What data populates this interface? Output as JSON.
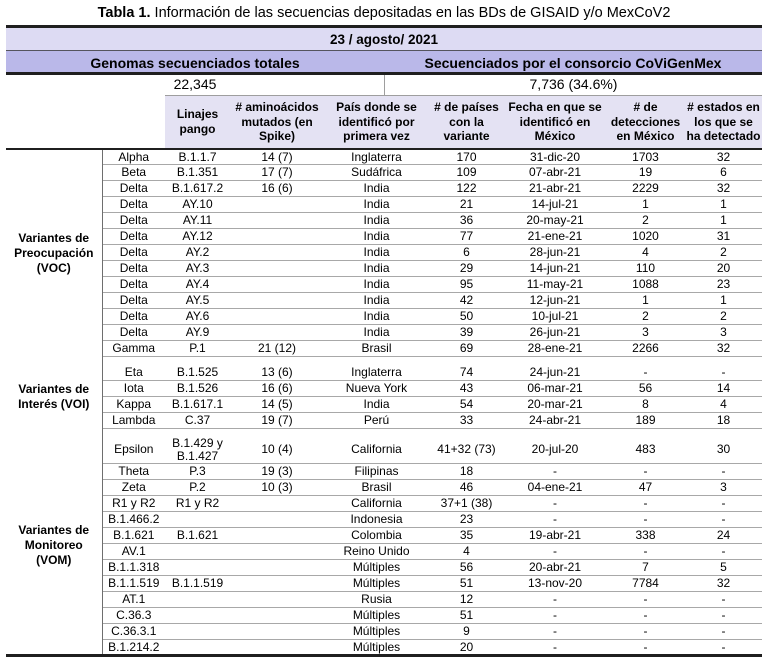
{
  "title": {
    "label": "Tabla 1.",
    "text": " Información de las secuencias depositadas en las BDs de GISAID y/o MexCoV2"
  },
  "summary": {
    "date": "23 / agosto/ 2021",
    "left_header": "Genomas secuenciados totales",
    "right_header": "Secuenciados por el consorcio CoViGenMex",
    "left_value": "22,345",
    "right_value": "7,736 (34.6%)"
  },
  "colors": {
    "date_band": "#dddbf3",
    "header_band": "#bab8e9",
    "column_band": "#e4e2f3",
    "border_dark": "#1f1f1f",
    "border_gray": "#9e9e9e"
  },
  "table": {
    "columns": [
      "Linajes pango",
      "# aminoácidos mutados (en Spike)",
      "País donde se identificó por primera vez",
      "# de países con la variante",
      "Fecha en que se identificó en México",
      "# de detecciones en México",
      "# estados en los que se ha detectado"
    ],
    "row_keys": [
      "name",
      "linaje",
      "amino",
      "pais",
      "paises",
      "fecha",
      "detecciones",
      "estados"
    ],
    "groups": [
      {
        "label": "Variantes de\nPreocupación\n(VOC)",
        "rows": [
          {
            "name": "Alpha",
            "linaje": "B.1.1.7",
            "amino": "14 (7)",
            "pais": "Inglaterra",
            "paises": "170",
            "fecha": "31-dic-20",
            "detecciones": "1703",
            "estados": "32"
          },
          {
            "name": "Beta",
            "linaje": "B.1.351",
            "amino": "17 (7)",
            "pais": "Sudáfrica",
            "paises": "109",
            "fecha": "07-abr-21",
            "detecciones": "19",
            "estados": "6"
          },
          {
            "name": "Delta",
            "linaje": "B.1.617.2",
            "amino": "16 (6)",
            "pais": "India",
            "paises": "122",
            "fecha": "21-abr-21",
            "detecciones": "2229",
            "estados": "32"
          },
          {
            "name": "Delta",
            "linaje": "AY.10",
            "amino": "",
            "pais": "India",
            "paises": "21",
            "fecha": "14-jul-21",
            "detecciones": "1",
            "estados": "1"
          },
          {
            "name": "Delta",
            "linaje": "AY.11",
            "amino": "",
            "pais": "India",
            "paises": "36",
            "fecha": "20-may-21",
            "detecciones": "2",
            "estados": "1"
          },
          {
            "name": "Delta",
            "linaje": "AY.12",
            "amino": "",
            "pais": "India",
            "paises": "77",
            "fecha": "21-ene-21",
            "detecciones": "1020",
            "estados": "31"
          },
          {
            "name": "Delta",
            "linaje": "AY.2",
            "amino": "",
            "pais": "India",
            "paises": "6",
            "fecha": "28-jun-21",
            "detecciones": "4",
            "estados": "2"
          },
          {
            "name": "Delta",
            "linaje": "AY.3",
            "amino": "",
            "pais": "India",
            "paises": "29",
            "fecha": "14-jun-21",
            "detecciones": "110",
            "estados": "20"
          },
          {
            "name": "Delta",
            "linaje": "AY.4",
            "amino": "",
            "pais": "India",
            "paises": "95",
            "fecha": "11-may-21",
            "detecciones": "1088",
            "estados": "23"
          },
          {
            "name": "Delta",
            "linaje": "AY.5",
            "amino": "",
            "pais": "India",
            "paises": "42",
            "fecha": "12-jun-21",
            "detecciones": "1",
            "estados": "1"
          },
          {
            "name": "Delta",
            "linaje": "AY.6",
            "amino": "",
            "pais": "India",
            "paises": "50",
            "fecha": "10-jul-21",
            "detecciones": "2",
            "estados": "2"
          },
          {
            "name": "Delta",
            "linaje": "AY.9",
            "amino": "",
            "pais": "India",
            "paises": "39",
            "fecha": "26-jun-21",
            "detecciones": "3",
            "estados": "3"
          },
          {
            "name": "Gamma",
            "linaje": "P.1",
            "amino": "21 (12)",
            "pais": "Brasil",
            "paises": "69",
            "fecha": "28-ene-21",
            "detecciones": "2266",
            "estados": "32"
          }
        ]
      },
      {
        "label": "Variantes de\nInterés (VOI)",
        "rows": [
          {
            "name": "Eta",
            "linaje": "B.1.525",
            "amino": "13 (6)",
            "pais": "Inglaterra",
            "paises": "74",
            "fecha": "24-jun-21",
            "detecciones": "-",
            "estados": "-"
          },
          {
            "name": "Iota",
            "linaje": "B.1.526",
            "amino": "16 (6)",
            "pais": "Nueva York",
            "paises": "43",
            "fecha": "06-mar-21",
            "detecciones": "56",
            "estados": "14"
          },
          {
            "name": "Kappa",
            "linaje": "B.1.617.1",
            "amino": "14 (5)",
            "pais": "India",
            "paises": "54",
            "fecha": "20-mar-21",
            "detecciones": "8",
            "estados": "4"
          },
          {
            "name": "Lambda",
            "linaje": "C.37",
            "amino": "19 (7)",
            "pais": "Perú",
            "paises": "33",
            "fecha": "24-abr-21",
            "detecciones": "189",
            "estados": "18"
          }
        ]
      },
      {
        "label": "Variantes de\nMonitoreo\n(VOM)",
        "rows": [
          {
            "name": "Epsilon",
            "linaje": "B.1.429 y\nB.1.427",
            "amino": "10 (4)",
            "pais": "California",
            "paises": "41+32 (73)",
            "fecha": "20-jul-20",
            "detecciones": "483",
            "estados": "30"
          },
          {
            "name": "Theta",
            "linaje": "P.3",
            "amino": "19 (3)",
            "pais": "Filipinas",
            "paises": "18",
            "fecha": "-",
            "detecciones": "-",
            "estados": "-"
          },
          {
            "name": "Zeta",
            "linaje": "P.2",
            "amino": "10 (3)",
            "pais": "Brasil",
            "paises": "46",
            "fecha": "04-ene-21",
            "detecciones": "47",
            "estados": "3"
          },
          {
            "name": "R1 y R2",
            "linaje": "R1 y R2",
            "amino": "",
            "pais": "California",
            "paises": "37+1 (38)",
            "fecha": "-",
            "detecciones": "-",
            "estados": "-"
          },
          {
            "name": "B.1.466.2",
            "linaje": "",
            "amino": "",
            "pais": "Indonesia",
            "paises": "23",
            "fecha": "-",
            "detecciones": "-",
            "estados": "-"
          },
          {
            "name": "B.1.621",
            "linaje": "B.1.621",
            "amino": "",
            "pais": "Colombia",
            "paises": "35",
            "fecha": "19-abr-21",
            "detecciones": "338",
            "estados": "24"
          },
          {
            "name": "AV.1",
            "linaje": "",
            "amino": "",
            "pais": "Reino Unido",
            "paises": "4",
            "fecha": "-",
            "detecciones": "-",
            "estados": "-"
          },
          {
            "name": "B.1.1.318",
            "linaje": "",
            "amino": "",
            "pais": "Múltiples",
            "paises": "56",
            "fecha": "20-abr-21",
            "detecciones": "7",
            "estados": "5"
          },
          {
            "name": "B.1.1.519",
            "linaje": "B.1.1.519",
            "amino": "",
            "pais": "Múltiples",
            "paises": "51",
            "fecha": "13-nov-20",
            "detecciones": "7784",
            "estados": "32"
          },
          {
            "name": "AT.1",
            "linaje": "",
            "amino": "",
            "pais": "Rusia",
            "paises": "12",
            "fecha": "-",
            "detecciones": "-",
            "estados": "-"
          },
          {
            "name": "C.36.3",
            "linaje": "",
            "amino": "",
            "pais": "Múltiples",
            "paises": "51",
            "fecha": "-",
            "detecciones": "-",
            "estados": "-"
          },
          {
            "name": "C.36.3.1",
            "linaje": "",
            "amino": "",
            "pais": "Múltiples",
            "paises": "9",
            "fecha": "-",
            "detecciones": "-",
            "estados": "-"
          },
          {
            "name": "B.1.214.2",
            "linaje": "",
            "amino": "",
            "pais": "Múltiples",
            "paises": "20",
            "fecha": "-",
            "detecciones": "-",
            "estados": "-"
          }
        ]
      }
    ]
  }
}
